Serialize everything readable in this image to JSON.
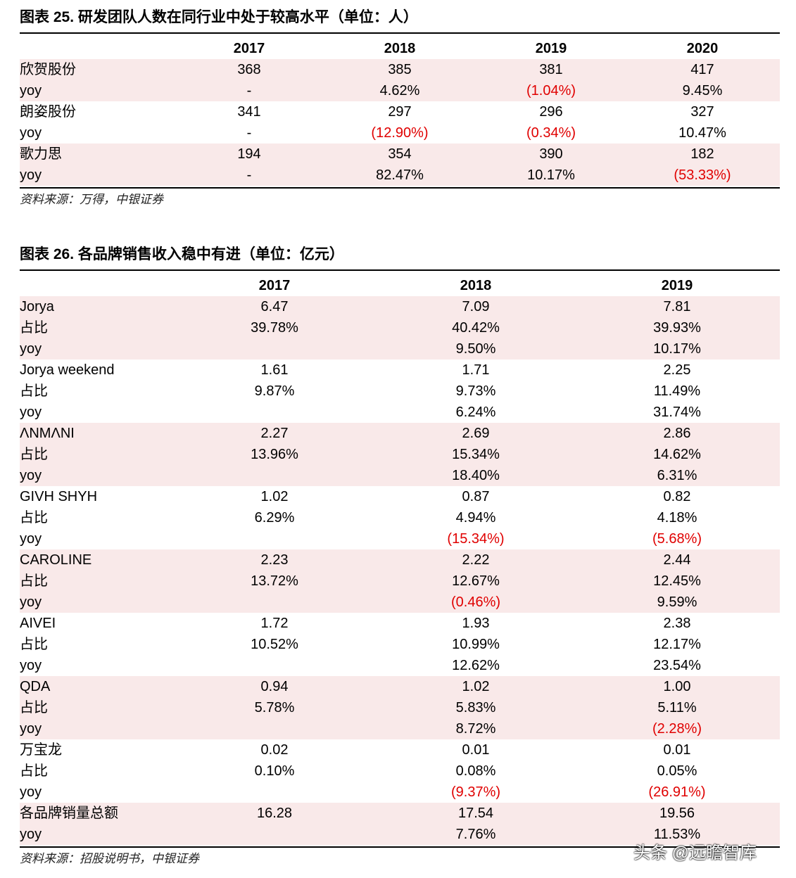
{
  "tables": [
    {
      "title": "图表 25. 研发团队人数在同行业中处于较高水平（单位：人）",
      "columns": [
        "2017",
        "2018",
        "2019",
        "2020"
      ],
      "rows": [
        [
          "欣贺股份",
          "368",
          "385",
          "381",
          "417"
        ],
        [
          "yoy",
          "-",
          "4.62%",
          "(1.04%)",
          "9.45%"
        ],
        [
          "朗姿股份",
          "341",
          "297",
          "296",
          "327"
        ],
        [
          "yoy",
          "-",
          "(12.90%)",
          "(0.34%)",
          "10.47%"
        ],
        [
          "歌力思",
          "194",
          "354",
          "390",
          "182"
        ],
        [
          "yoy",
          "-",
          "82.47%",
          "10.17%",
          "(53.33%)"
        ]
      ],
      "source": "资料来源：万得，中银证券"
    },
    {
      "title": "图表 26. 各品牌销售收入稳中有进（单位：亿元）",
      "columns": [
        "2017",
        "2018",
        "2019"
      ],
      "rows": [
        [
          "Jorya",
          "6.47",
          "7.09",
          "7.81"
        ],
        [
          "占比",
          "39.78%",
          "40.42%",
          "39.93%"
        ],
        [
          "yoy",
          null,
          "9.50%",
          "10.17%"
        ],
        [
          "Jorya weekend",
          "1.61",
          "1.71",
          "2.25"
        ],
        [
          "占比",
          "9.87%",
          "9.73%",
          "11.49%"
        ],
        [
          "yoy",
          null,
          "6.24%",
          "31.74%"
        ],
        [
          "ΛNMΛNI",
          "2.27",
          "2.69",
          "2.86"
        ],
        [
          "占比",
          "13.96%",
          "15.34%",
          "14.62%"
        ],
        [
          "yoy",
          null,
          "18.40%",
          "6.31%"
        ],
        [
          "GIVH SHYH",
          "1.02",
          "0.87",
          "0.82"
        ],
        [
          "占比",
          "6.29%",
          "4.94%",
          "4.18%"
        ],
        [
          "yoy",
          null,
          "(15.34%)",
          "(5.68%)"
        ],
        [
          "CAROLINE",
          "2.23",
          "2.22",
          "2.44"
        ],
        [
          "占比",
          "13.72%",
          "12.67%",
          "12.45%"
        ],
        [
          "yoy",
          null,
          "(0.46%)",
          "9.59%"
        ],
        [
          "AIVEI",
          "1.72",
          "1.93",
          "2.38"
        ],
        [
          "占比",
          "10.52%",
          "10.99%",
          "12.17%"
        ],
        [
          "yoy",
          null,
          "12.62%",
          "23.54%"
        ],
        [
          "QDA",
          "0.94",
          "1.02",
          "1.00"
        ],
        [
          "占比",
          "5.78%",
          "5.83%",
          "5.11%"
        ],
        [
          "yoy",
          null,
          "8.72%",
          "(2.28%)"
        ],
        [
          "万宝龙",
          "0.02",
          "0.01",
          "0.01"
        ],
        [
          "占比",
          "0.10%",
          "0.08%",
          "0.05%"
        ],
        [
          "yoy",
          null,
          "(9.37%)",
          "(26.91%)"
        ],
        [
          "各品牌销量总额",
          "16.28",
          "17.54",
          "19.56"
        ],
        [
          "yoy",
          null,
          "7.76%",
          "11.53%"
        ]
      ],
      "source": "资料来源：招股说明书，中银证券"
    }
  ],
  "watermark": "头条 @远瞻智库"
}
